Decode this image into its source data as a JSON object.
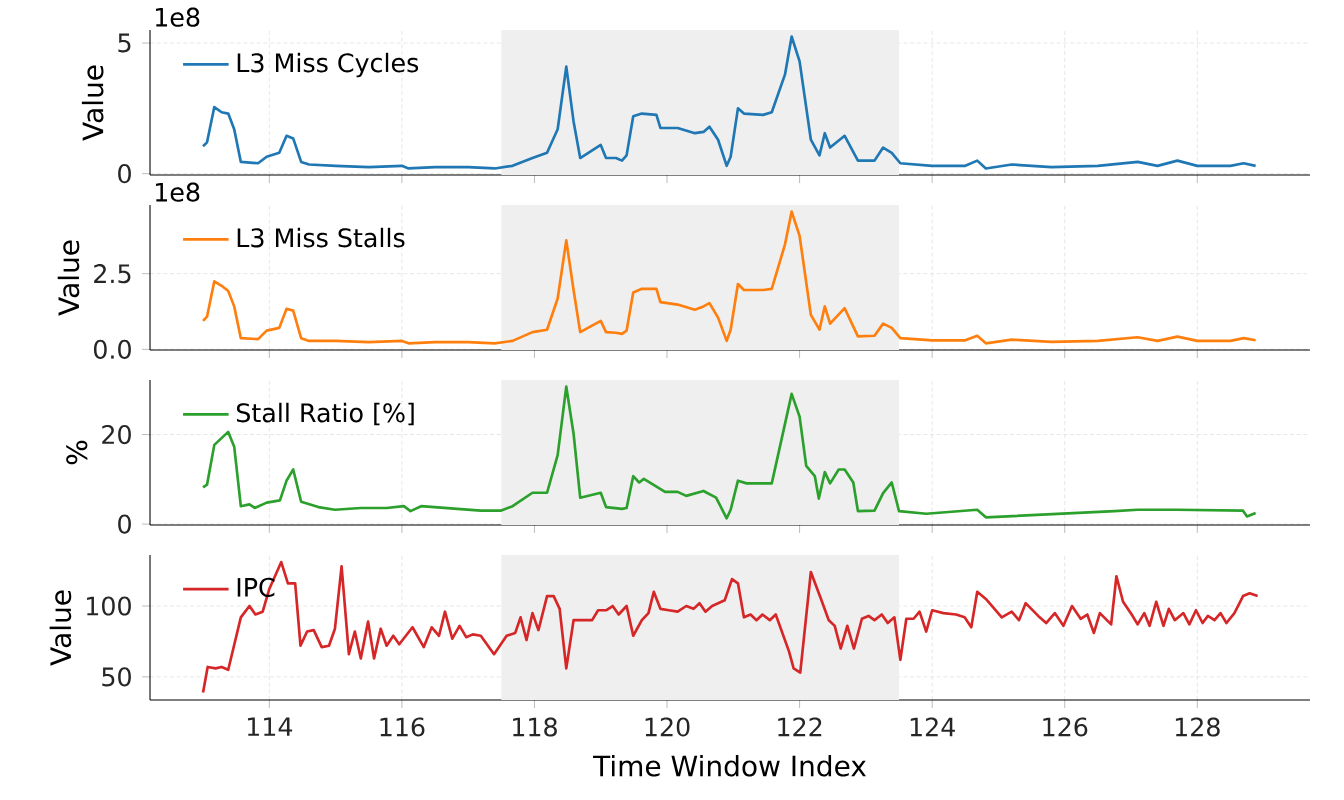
{
  "chart_data": [
    {
      "type": "line",
      "ylabel": "Value",
      "annotations": [
        "1e8"
      ],
      "grid": true,
      "legend": "top left",
      "tick_labels": "y",
      "x": [
        113.0,
        113.06,
        113.17,
        113.28,
        113.38,
        113.47,
        113.57,
        113.83,
        113.96,
        114.15,
        114.26,
        114.36,
        114.48,
        114.6,
        115.0,
        115.5,
        116.0,
        116.1,
        116.5,
        117.0,
        117.4,
        117.67,
        117.97,
        118.19,
        118.35,
        118.48,
        118.59,
        118.69,
        119.0,
        119.08,
        119.23,
        119.32,
        119.39,
        119.49,
        119.62,
        119.84,
        119.9,
        120.16,
        120.42,
        120.55,
        120.64,
        120.77,
        120.9,
        120.96,
        121.07,
        121.16,
        121.45,
        121.58,
        121.78,
        121.88,
        122.0,
        122.17,
        122.3,
        122.38,
        122.46,
        122.68,
        122.88,
        123.13,
        123.26,
        123.39,
        123.52,
        124.0,
        124.5,
        124.68,
        124.81,
        125.2,
        125.8,
        126.5,
        127.1,
        127.4,
        127.7,
        128.0,
        128.5,
        128.7,
        128.88
      ],
      "series": [
        {
          "name": "L3 Miss Cycles",
          "color": "#1f77b4",
          "values": [
            1.05,
            1.2,
            2.55,
            2.35,
            2.3,
            1.7,
            0.45,
            0.4,
            0.65,
            0.8,
            1.45,
            1.35,
            0.45,
            0.35,
            0.3,
            0.25,
            0.3,
            0.2,
            0.25,
            0.25,
            0.2,
            0.3,
            0.6,
            0.8,
            1.7,
            4.1,
            2.0,
            0.6,
            1.1,
            0.6,
            0.6,
            0.5,
            0.7,
            2.2,
            2.3,
            2.25,
            1.75,
            1.75,
            1.55,
            1.6,
            1.8,
            1.3,
            0.3,
            0.65,
            2.5,
            2.3,
            2.25,
            2.35,
            3.8,
            5.25,
            4.3,
            1.3,
            0.7,
            1.55,
            1.0,
            1.45,
            0.5,
            0.5,
            1.0,
            0.8,
            0.4,
            0.3,
            0.3,
            0.5,
            0.2,
            0.35,
            0.25,
            0.3,
            0.45,
            0.3,
            0.5,
            0.3,
            0.3,
            0.4,
            0.3
          ]
        }
      ],
      "xlim": [
        112.2,
        129.7
      ],
      "xticks": [
        114,
        116,
        118,
        120,
        122,
        124,
        126,
        128
      ],
      "ylim": [
        -0.05,
        5.5
      ],
      "yticks": [
        0,
        5
      ],
      "bands": [
        {
          "axis": "x",
          "from": 117.5,
          "to": 123.5,
          "color": "#efefef"
        }
      ]
    },
    {
      "type": "line",
      "ylabel": "Value",
      "annotations": [
        "1e8"
      ],
      "grid": true,
      "legend": "top left",
      "tick_labels": "y",
      "x": [
        113.0,
        113.06,
        113.17,
        113.28,
        113.38,
        113.47,
        113.57,
        113.83,
        113.96,
        114.15,
        114.26,
        114.36,
        114.48,
        114.6,
        115.0,
        115.5,
        116.0,
        116.1,
        116.5,
        117.0,
        117.4,
        117.67,
        117.97,
        118.19,
        118.35,
        118.48,
        118.59,
        118.69,
        119.0,
        119.08,
        119.23,
        119.32,
        119.39,
        119.49,
        119.62,
        119.84,
        119.9,
        120.16,
        120.42,
        120.55,
        120.64,
        120.77,
        120.9,
        120.96,
        121.07,
        121.16,
        121.45,
        121.58,
        121.78,
        121.88,
        122.0,
        122.17,
        122.3,
        122.38,
        122.46,
        122.68,
        122.88,
        123.13,
        123.26,
        123.39,
        123.52,
        124.0,
        124.5,
        124.68,
        124.81,
        125.2,
        125.8,
        126.5,
        127.1,
        127.4,
        127.7,
        128.0,
        128.5,
        128.7,
        128.88
      ],
      "series": [
        {
          "name": "L3 Miss Stalls",
          "color": "#ff7f0e",
          "values": [
            0.94,
            1.08,
            2.25,
            2.1,
            1.93,
            1.42,
            0.37,
            0.34,
            0.62,
            0.71,
            1.34,
            1.28,
            0.37,
            0.28,
            0.28,
            0.24,
            0.28,
            0.2,
            0.24,
            0.24,
            0.2,
            0.28,
            0.57,
            0.65,
            1.68,
            3.6,
            1.96,
            0.57,
            0.94,
            0.57,
            0.55,
            0.51,
            0.62,
            1.88,
            2.0,
            2.0,
            1.56,
            1.48,
            1.31,
            1.42,
            1.53,
            1.05,
            0.28,
            0.65,
            2.16,
            1.96,
            1.96,
            2.0,
            3.47,
            4.55,
            3.75,
            1.14,
            0.65,
            1.42,
            0.85,
            1.36,
            0.43,
            0.45,
            0.85,
            0.71,
            0.37,
            0.3,
            0.3,
            0.45,
            0.2,
            0.32,
            0.25,
            0.28,
            0.4,
            0.28,
            0.42,
            0.28,
            0.28,
            0.37,
            0.3
          ]
        }
      ],
      "xlim": [
        112.2,
        129.7
      ],
      "xticks": [
        114,
        116,
        118,
        120,
        122,
        124,
        126,
        128
      ],
      "ylim": [
        -0.02,
        4.77
      ],
      "yticks": [
        {
          "value": 0,
          "label": "0.0"
        },
        2.5
      ],
      "bands": [
        {
          "axis": "x",
          "from": 117.5,
          "to": 123.5,
          "color": "#efefef"
        }
      ]
    },
    {
      "type": "line",
      "ylabel": "%",
      "grid": true,
      "legend": "top left",
      "tick_labels": "y",
      "x": [
        113.0,
        113.06,
        113.17,
        113.38,
        113.47,
        113.57,
        113.7,
        113.78,
        113.96,
        114.16,
        114.26,
        114.36,
        114.48,
        114.74,
        114.99,
        115.38,
        115.77,
        116.03,
        116.13,
        116.29,
        117.19,
        117.49,
        117.67,
        117.97,
        118.19,
        118.35,
        118.48,
        118.59,
        118.69,
        119.0,
        119.08,
        119.32,
        119.39,
        119.49,
        119.58,
        119.65,
        119.97,
        120.16,
        120.29,
        120.55,
        120.74,
        120.9,
        120.96,
        121.07,
        121.2,
        121.58,
        121.88,
        122.0,
        122.1,
        122.23,
        122.29,
        122.38,
        122.46,
        122.59,
        122.68,
        122.81,
        122.88,
        123.13,
        123.26,
        123.39,
        123.5,
        123.91,
        124.68,
        124.81,
        126.75,
        127.1,
        127.69,
        128.69,
        128.75,
        128.88
      ],
      "series": [
        {
          "name": "Stall Ratio [%]",
          "color": "#2ca02c",
          "values": [
            8.2,
            8.8,
            17.7,
            20.6,
            17.3,
            4.0,
            4.4,
            3.6,
            4.8,
            5.3,
            9.7,
            12.2,
            5.0,
            3.8,
            3.2,
            3.6,
            3.6,
            4.0,
            2.9,
            4.0,
            3.0,
            3.0,
            4.0,
            7.0,
            7.0,
            15.4,
            30.7,
            20.2,
            5.9,
            7.0,
            3.8,
            3.4,
            3.6,
            10.7,
            9.3,
            10.1,
            7.2,
            7.2,
            6.3,
            7.4,
            5.9,
            1.3,
            3.2,
            9.7,
            9.1,
            9.1,
            29.1,
            24.0,
            13.0,
            10.7,
            5.7,
            11.6,
            9.1,
            12.2,
            12.2,
            9.3,
            2.9,
            3.0,
            6.9,
            9.3,
            2.9,
            2.3,
            3.2,
            1.5,
            2.9,
            3.2,
            3.2,
            3.0,
            1.7,
            2.5
          ]
        }
      ],
      "xlim": [
        112.2,
        129.7
      ],
      "xticks": [
        114,
        116,
        118,
        120,
        122,
        124,
        126,
        128
      ],
      "ylim": [
        -0.2,
        32.2
      ],
      "yticks": [
        0,
        20
      ],
      "bands": [
        {
          "axis": "x",
          "from": 117.5,
          "to": 123.5,
          "color": "#efefef"
        }
      ]
    },
    {
      "type": "line",
      "ylabel": "Value",
      "xlabel": "Time Window Index",
      "grid": true,
      "legend": "top left",
      "x": [
        113.0,
        113.07,
        113.19,
        113.28,
        113.38,
        113.57,
        113.7,
        113.79,
        113.9,
        114.0,
        114.18,
        114.28,
        114.39,
        114.47,
        114.57,
        114.67,
        114.79,
        114.9,
        114.99,
        115.09,
        115.2,
        115.29,
        115.38,
        115.49,
        115.58,
        115.68,
        115.77,
        115.87,
        115.96,
        116.16,
        116.33,
        116.45,
        116.56,
        116.65,
        116.76,
        116.87,
        116.97,
        117.07,
        117.19,
        117.39,
        117.58,
        117.71,
        117.79,
        117.88,
        117.97,
        118.06,
        118.19,
        118.29,
        118.38,
        118.48,
        118.59,
        118.68,
        118.87,
        118.96,
        119.08,
        119.18,
        119.27,
        119.39,
        119.49,
        119.62,
        119.72,
        119.8,
        119.9,
        120.03,
        120.16,
        120.29,
        120.4,
        120.49,
        120.58,
        120.68,
        120.87,
        120.98,
        121.07,
        121.16,
        121.26,
        121.35,
        121.44,
        121.55,
        121.64,
        121.84,
        121.91,
        122.01,
        122.17,
        122.33,
        122.44,
        122.53,
        122.62,
        122.72,
        122.82,
        122.94,
        123.04,
        123.13,
        123.24,
        123.33,
        123.43,
        123.52,
        123.61,
        123.72,
        123.81,
        123.91,
        124.0,
        124.17,
        124.36,
        124.49,
        124.59,
        124.68,
        124.81,
        124.94,
        125.05,
        125.2,
        125.31,
        125.41,
        125.6,
        125.72,
        125.85,
        125.98,
        126.11,
        126.24,
        126.34,
        126.44,
        126.53,
        126.7,
        126.78,
        126.88,
        127.01,
        127.1,
        127.2,
        127.28,
        127.38,
        127.49,
        127.57,
        127.66,
        127.79,
        127.88,
        127.98,
        128.08,
        128.16,
        128.26,
        128.35,
        128.44,
        128.56,
        128.69,
        128.79,
        128.91
      ],
      "series": [
        {
          "name": "IPC",
          "color": "#d62728",
          "values": [
            39,
            57,
            56,
            57,
            55,
            92,
            100,
            94,
            96,
            112,
            131,
            116,
            116,
            72,
            82,
            83,
            71,
            72,
            84,
            128,
            66,
            82,
            63,
            89,
            63,
            84,
            72,
            79,
            73,
            85,
            71,
            85,
            79,
            96,
            77,
            86,
            78,
            80,
            79,
            66,
            79,
            81,
            92,
            76,
            95,
            83,
            107,
            107,
            98,
            56,
            90,
            90,
            90,
            97,
            97,
            100,
            94,
            100,
            79,
            90,
            95,
            110,
            98,
            97,
            96,
            100,
            98,
            102,
            96,
            100,
            104,
            119,
            116,
            92,
            94,
            90,
            94,
            90,
            94,
            68,
            56,
            53,
            124,
            104,
            90,
            86,
            70,
            86,
            70,
            91,
            93,
            90,
            94,
            88,
            92,
            62,
            91,
            91,
            96,
            82,
            97,
            95,
            94,
            92,
            85,
            110,
            105,
            98,
            92,
            96,
            90,
            102,
            93,
            88,
            95,
            86,
            100,
            91,
            94,
            81,
            95,
            87,
            121,
            103,
            94,
            87,
            95,
            86,
            103,
            86,
            98,
            90,
            95,
            87,
            97,
            88,
            93,
            90,
            95,
            88,
            95,
            107,
            109,
            107
          ]
        }
      ],
      "xlim": [
        112.2,
        129.7
      ],
      "xticks": [
        114,
        116,
        118,
        120,
        122,
        124,
        126,
        128
      ],
      "ylim": [
        33.7,
        136
      ],
      "yticks": [
        50,
        100
      ],
      "bands": [
        {
          "axis": "x",
          "from": 117.5,
          "to": 123.5,
          "color": "#efefef"
        }
      ]
    }
  ]
}
